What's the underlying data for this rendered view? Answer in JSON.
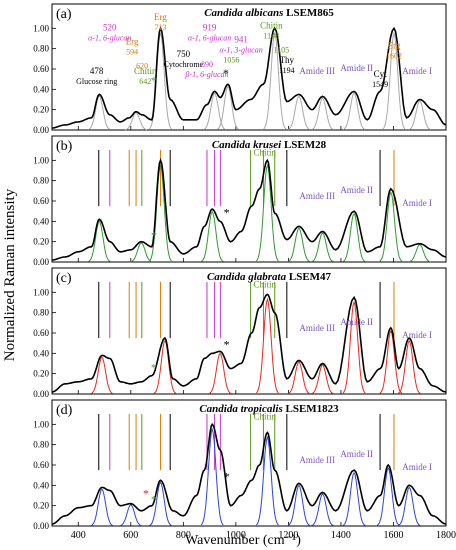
{
  "figure": {
    "ylabel": "Normalized Raman intensity",
    "xlabel": "Wavenumber (cm⁻¹)",
    "xticks": [
      400,
      600,
      800,
      1000,
      1200,
      1400,
      1600,
      1800
    ],
    "yticks": [
      "0.00",
      "0.20",
      "0.40",
      "0.60",
      "0.80",
      "1.00"
    ]
  },
  "colors": {
    "text_black": "#000000",
    "magenta": "#cc33cc",
    "orange": "#e07b00",
    "chitin_green": "#5a9a1a",
    "amide_purple": "#7e55c0",
    "panel_a_fill": "#a8a8a8",
    "panel_b_fill": "#2e9c2e",
    "panel_c_fill": "#e8281c",
    "panel_d_fill": "#2b45d8",
    "asterisk_green": "#3aa43a",
    "asterisk_red": "#e02020"
  },
  "chart_data": [
    {
      "type": "line",
      "panel": "(a)",
      "title_species": "Candida albicans",
      "title_strain": "LSEM865",
      "xlim": [
        300,
        1800
      ],
      "ylim": [
        0,
        1.2
      ],
      "x": [
        300,
        350,
        400,
        450,
        480,
        520,
        560,
        594,
        620,
        642,
        680,
        713,
        750,
        800,
        850,
        890,
        919,
        941,
        970,
        1000,
        1056,
        1105,
        1148,
        1194,
        1240,
        1290,
        1330,
        1380,
        1450,
        1500,
        1549,
        1602,
        1650,
        1700,
        1750,
        1800
      ],
      "y": [
        0.02,
        0.05,
        0.08,
        0.12,
        0.35,
        0.15,
        0.08,
        0.12,
        0.18,
        0.15,
        0.1,
        1.0,
        0.3,
        0.1,
        0.1,
        0.25,
        0.38,
        0.32,
        0.45,
        0.2,
        0.3,
        0.45,
        1.0,
        0.28,
        0.35,
        0.2,
        0.33,
        0.15,
        0.38,
        0.1,
        0.38,
        1.0,
        0.12,
        0.3,
        0.2,
        0.05
      ],
      "annotations": [
        {
          "text": "478",
          "sub": "Glucose ring",
          "color": "black"
        },
        {
          "text": "520",
          "sub": "α-1, 6-glucan",
          "color": "magenta"
        },
        {
          "text": "Erg",
          "sub": "594",
          "extra": "620",
          "color": "orange"
        },
        {
          "text": "Chitin",
          "sub": "642",
          "color": "chitin"
        },
        {
          "text": "Erg",
          "sub": "713",
          "color": "orange"
        },
        {
          "text": "750",
          "sub": "Cytochrome",
          "color": "black"
        },
        {
          "text": "919",
          "sub": "α-1, 6-glucan",
          "color": "magenta"
        },
        {
          "text": "890",
          "sub": "β-1, 6-glucan",
          "color": "magenta"
        },
        {
          "text": "941",
          "sub": "α-1, 3-glucan",
          "color": "magenta"
        },
        {
          "text": "Chitin",
          "sub": "1148",
          "extra": "1105",
          "extra2": "1056",
          "color": "chitin"
        },
        {
          "text": "Thy",
          "sub": "1194",
          "color": "black"
        },
        {
          "text": "Amide III",
          "color": "amide"
        },
        {
          "text": "Amide II",
          "color": "amide"
        },
        {
          "text": "Cyt",
          "sub": "1549",
          "color": "black"
        },
        {
          "text": "Erg",
          "sub": "1602",
          "color": "orange"
        },
        {
          "text": "Amide I",
          "color": "amide"
        }
      ]
    },
    {
      "type": "line",
      "panel": "(b)",
      "title_species": "Candida krusei",
      "title_strain": "LSEM28",
      "xlim": [
        300,
        1800
      ],
      "ylim": [
        0,
        1.2
      ],
      "x": [
        300,
        350,
        400,
        450,
        480,
        520,
        560,
        600,
        640,
        680,
        713,
        750,
        800,
        850,
        880,
        910,
        940,
        980,
        1020,
        1060,
        1090,
        1120,
        1148,
        1194,
        1240,
        1290,
        1330,
        1380,
        1450,
        1500,
        1549,
        1590,
        1650,
        1700,
        1750,
        1800
      ],
      "y": [
        0.02,
        0.05,
        0.1,
        0.15,
        0.42,
        0.2,
        0.1,
        0.12,
        0.2,
        0.15,
        1.0,
        0.2,
        0.08,
        0.15,
        0.35,
        0.52,
        0.4,
        0.2,
        0.3,
        0.55,
        0.72,
        1.0,
        0.48,
        0.22,
        0.35,
        0.2,
        0.3,
        0.12,
        0.5,
        0.1,
        0.15,
        0.72,
        0.15,
        0.18,
        0.12,
        0.05
      ],
      "annotations": [
        {
          "text": "Chitin",
          "color": "chitin"
        },
        {
          "text": "Amide III",
          "color": "amide"
        },
        {
          "text": "Amide II",
          "color": "amide"
        },
        {
          "text": "Amide I",
          "color": "amide"
        }
      ]
    },
    {
      "type": "line",
      "panel": "(c)",
      "title_species": "Candida glabrata",
      "title_strain": "LSEM47",
      "xlim": [
        300,
        1800
      ],
      "ylim": [
        0,
        1.2
      ],
      "x": [
        300,
        350,
        400,
        450,
        490,
        520,
        560,
        600,
        640,
        680,
        730,
        760,
        800,
        850,
        880,
        910,
        940,
        980,
        1020,
        1060,
        1090,
        1120,
        1148,
        1194,
        1240,
        1290,
        1330,
        1380,
        1450,
        1500,
        1550,
        1590,
        1620,
        1660,
        1700,
        1750,
        1800
      ],
      "y": [
        0.02,
        0.1,
        0.12,
        0.15,
        0.38,
        0.35,
        0.12,
        0.1,
        0.12,
        0.18,
        0.55,
        0.15,
        0.08,
        0.15,
        0.35,
        0.4,
        0.42,
        0.25,
        0.3,
        0.6,
        0.85,
        0.98,
        0.8,
        0.15,
        0.33,
        0.15,
        0.3,
        0.1,
        0.95,
        0.12,
        0.25,
        0.65,
        0.25,
        0.55,
        0.25,
        0.08,
        0.02
      ],
      "annotations": [
        {
          "text": "Chitin",
          "color": "chitin"
        },
        {
          "text": "Amide III",
          "color": "amide"
        },
        {
          "text": "Amide II",
          "color": "amide"
        },
        {
          "text": "Amide I",
          "color": "amide"
        }
      ]
    },
    {
      "type": "line",
      "panel": "(d)",
      "title_species": "Candida tropicalis",
      "title_strain": "LSEM1823",
      "xlim": [
        300,
        1800
      ],
      "ylim": [
        0,
        1.2
      ],
      "x": [
        300,
        350,
        400,
        450,
        490,
        520,
        560,
        600,
        640,
        680,
        713,
        760,
        800,
        850,
        880,
        910,
        940,
        980,
        1020,
        1060,
        1090,
        1120,
        1148,
        1194,
        1240,
        1290,
        1330,
        1380,
        1450,
        1500,
        1550,
        1580,
        1620,
        1660,
        1700,
        1750,
        1800
      ],
      "y": [
        0.02,
        0.1,
        0.18,
        0.2,
        0.38,
        0.35,
        0.2,
        0.22,
        0.15,
        0.2,
        0.45,
        0.15,
        0.1,
        0.3,
        0.55,
        1.0,
        0.75,
        0.2,
        0.3,
        0.45,
        0.6,
        0.92,
        0.55,
        0.15,
        0.42,
        0.2,
        0.33,
        0.15,
        0.55,
        0.15,
        0.3,
        0.6,
        0.2,
        0.4,
        0.3,
        0.1,
        0.02
      ],
      "annotations": [
        {
          "text": "Chitin",
          "color": "chitin"
        },
        {
          "text": "Amide III",
          "color": "amide"
        },
        {
          "text": "Amide II",
          "color": "amide"
        },
        {
          "text": "Amide I",
          "color": "amide"
        }
      ]
    }
  ]
}
